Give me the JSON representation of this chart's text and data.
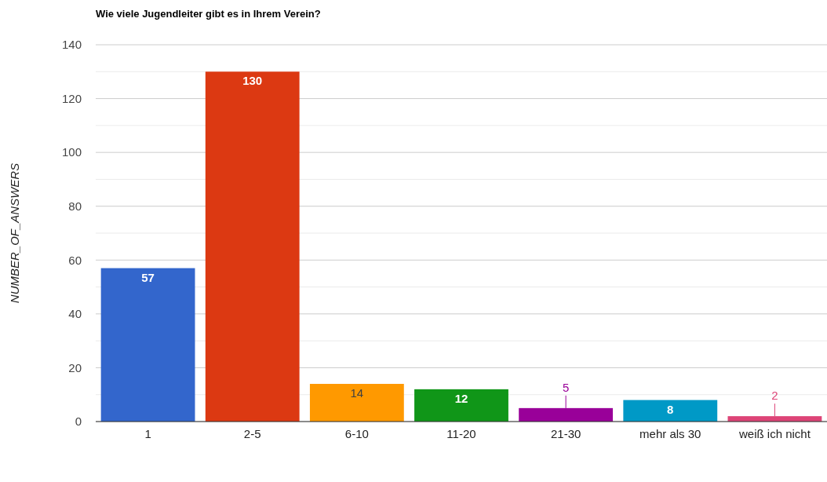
{
  "chart_data": {
    "type": "bar",
    "title": "Wie viele Jugendleiter gibt es in Ihrem Verein?",
    "ylabel": "NUMBER_OF_ANSWERS",
    "categories": [
      "1",
      "2-5",
      "6-10",
      "11-20",
      "21-30",
      "mehr als 30",
      "weiß ich nicht"
    ],
    "values": [
      57,
      130,
      14,
      12,
      5,
      8,
      2
    ],
    "colors": [
      "#3366cc",
      "#dc3912",
      "#ff9900",
      "#109618",
      "#990099",
      "#0099c6",
      "#dd4477"
    ],
    "ylim": [
      0,
      140
    ],
    "yticks": [
      0,
      {
        "value": 10,
        "label": null
      },
      20,
      {
        "value": 30,
        "label": null
      },
      40,
      {
        "value": 50,
        "label": null
      },
      60,
      {
        "value": 70,
        "label": null
      },
      80,
      {
        "value": 90,
        "label": null
      },
      100,
      {
        "value": 110,
        "label": null
      },
      120,
      {
        "value": 130,
        "label": null
      },
      140
    ],
    "grid": true,
    "data_labels": true
  }
}
